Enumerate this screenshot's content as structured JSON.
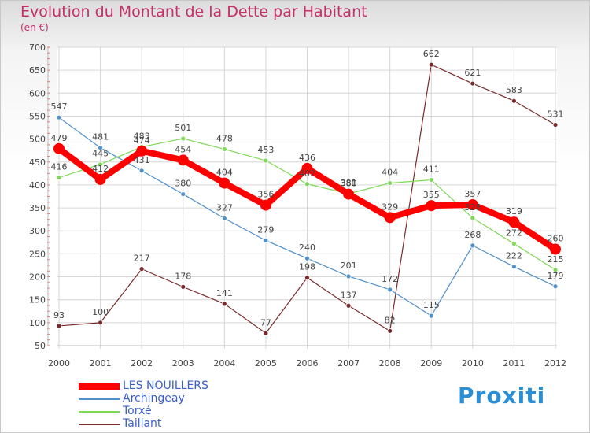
{
  "chart_data": {
    "type": "line",
    "title": "Evolution du Montant de la Dette par Habitant",
    "subtitle": "(en €)",
    "x": [
      "2000",
      "2001",
      "2002",
      "2003",
      "2004",
      "2005",
      "2006",
      "2007",
      "2008",
      "2009",
      "2010",
      "2011",
      "2012"
    ],
    "ylim": [
      50,
      700
    ],
    "yticks": [
      50,
      100,
      150,
      200,
      250,
      300,
      350,
      400,
      450,
      500,
      550,
      600,
      650,
      700
    ],
    "grid": true,
    "legend_position": "bottom-left",
    "series": [
      {
        "name": "LES NOUILLERS",
        "color": "#ff0000",
        "values": [
          479,
          412,
          474,
          454,
          404,
          356,
          436,
          380,
          329,
          355,
          357,
          319,
          260
        ]
      },
      {
        "name": "Archingeay",
        "color": "#4f8fca",
        "values": [
          547,
          481,
          431,
          380,
          327,
          279,
          240,
          201,
          172,
          115,
          268,
          222,
          179
        ]
      },
      {
        "name": "Torxé",
        "color": "#7ed957",
        "values": [
          416,
          445,
          483,
          501,
          478,
          453,
          402,
          381,
          404,
          411,
          328,
          272,
          215
        ]
      },
      {
        "name": "Taillant",
        "color": "#7a2a2a",
        "values": [
          93,
          100,
          217,
          178,
          141,
          77,
          198,
          137,
          82,
          662,
          621,
          583,
          531
        ]
      }
    ]
  },
  "brand": {
    "text": "Proxiti"
  }
}
